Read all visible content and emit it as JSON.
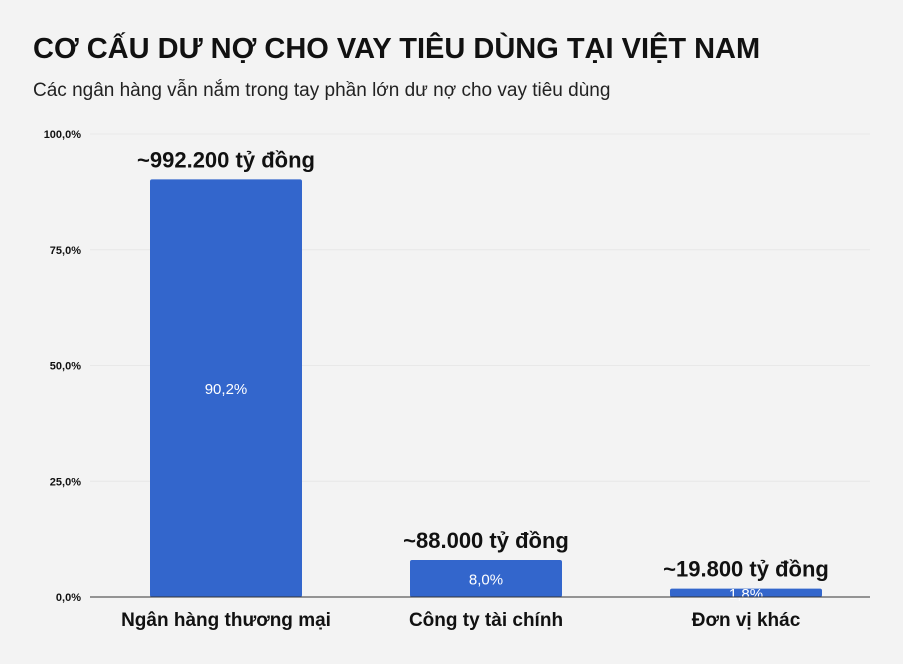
{
  "header": {
    "title": "CƠ CẤU DƯ NỢ CHO VAY TIÊU DÙNG TẠI VIỆT NAM",
    "subtitle": "Các ngân hàng vẫn nắm trong tay phần lớn dư nợ cho vay tiêu dùng"
  },
  "chart_data": {
    "type": "bar",
    "title": "CƠ CẤU DƯ NỢ CHO VAY TIÊU DÙNG TẠI VIỆT NAM",
    "subtitle": "Các ngân hàng vẫn nắm trong tay phần lớn dư nợ cho vay tiêu dùng",
    "categories": [
      "Ngân hàng thương mại",
      "Công ty tài chính",
      "Đơn vị khác"
    ],
    "values": [
      90.2,
      8.0,
      1.8
    ],
    "value_labels": [
      "90,2%",
      "8,0%",
      "1,8%"
    ],
    "annotations": [
      "~992.200 tỷ đồng",
      "~88.000 tỷ đồng",
      "~19.800 tỷ đồng"
    ],
    "ylim": [
      0,
      100
    ],
    "yticks": [
      0,
      25,
      50,
      75,
      100
    ],
    "ytick_labels": [
      "0,0%",
      "25,0%",
      "50,0%",
      "75,0%",
      "100,0%"
    ],
    "xlabel": "",
    "ylabel": "",
    "grid": true,
    "colors": {
      "bar": "#3366cc",
      "background": "#f3f3f3"
    }
  }
}
